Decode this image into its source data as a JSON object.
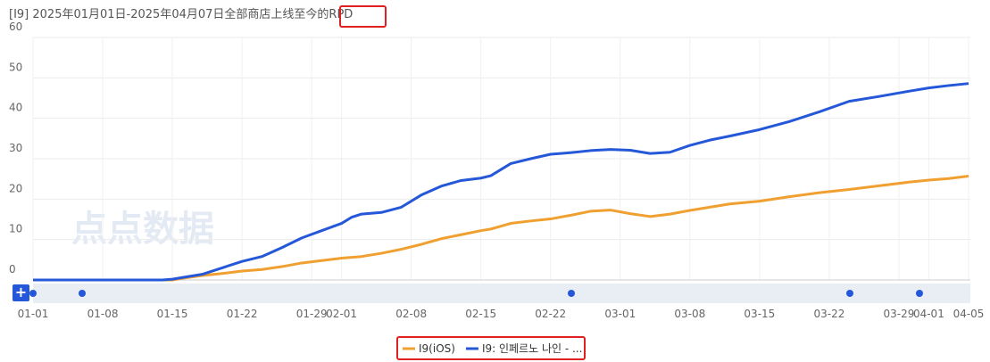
{
  "chart_data": {
    "type": "line",
    "title": "[I9] 2025年01月01日-2025年04月07日全部商店上线至今的RPD",
    "watermark": "点点数据",
    "zoom_button": "+",
    "x": [
      "01-01",
      "01-08",
      "01-14",
      "01-15",
      "01-16",
      "01-18",
      "01-20",
      "01-22",
      "01-24",
      "01-26",
      "01-28",
      "01-30",
      "02-01",
      "02-02",
      "02-03",
      "02-05",
      "02-07",
      "02-09",
      "02-11",
      "02-13",
      "02-15",
      "02-16",
      "02-18",
      "02-20",
      "02-22",
      "02-24",
      "02-26",
      "02-28",
      "03-02",
      "03-04",
      "03-06",
      "03-08",
      "03-10",
      "03-12",
      "03-15",
      "03-18",
      "03-21",
      "03-24",
      "03-27",
      "03-30",
      "04-01",
      "04-03",
      "04-05"
    ],
    "series": [
      {
        "name": "I9(iOS)",
        "color": "#f0a030",
        "values": [
          0,
          0,
          0,
          0,
          0.4,
          1.1,
          1.6,
          2.2,
          2.6,
          3.3,
          4.2,
          4.8,
          5.4,
          5.6,
          5.8,
          6.6,
          7.6,
          8.8,
          10.2,
          11.2,
          12.2,
          12.6,
          14,
          14.6,
          15.1,
          16,
          17,
          17.3,
          16.4,
          15.7,
          16.3,
          17.2,
          18,
          18.8,
          19.5,
          20.6,
          21.6,
          22.4,
          23.3,
          24.2,
          24.7,
          25.1,
          25.7
        ]
      },
      {
        "name": "I9: 인페르노 나인 - ...",
        "color": "#2458d8",
        "values": [
          0,
          0,
          0,
          0.2,
          0.6,
          1.4,
          3,
          4.6,
          5.8,
          8,
          10.4,
          12.2,
          14,
          15.5,
          16.3,
          16.7,
          18,
          21,
          23.2,
          24.6,
          25.2,
          25.8,
          28.8,
          30,
          31.1,
          31.5,
          32,
          32.3,
          32.1,
          31.3,
          31.6,
          33.3,
          34.6,
          35.6,
          37.2,
          39.2,
          41.6,
          44.2,
          45.4,
          46.7,
          47.5,
          48.1,
          48.6
        ]
      }
    ],
    "xlim": [
      "01-01",
      "04-05"
    ],
    "xticks": [
      "01-01",
      "01-08",
      "01-15",
      "01-22",
      "01-29",
      "02-01",
      "02-08",
      "02-15",
      "02-22",
      "03-01",
      "03-08",
      "03-15",
      "03-22",
      "03-29",
      "04-01",
      "04-05"
    ],
    "ylim": [
      0,
      60
    ],
    "yticks": [
      0,
      10,
      20,
      30,
      40,
      50,
      60
    ],
    "grid": true
  }
}
